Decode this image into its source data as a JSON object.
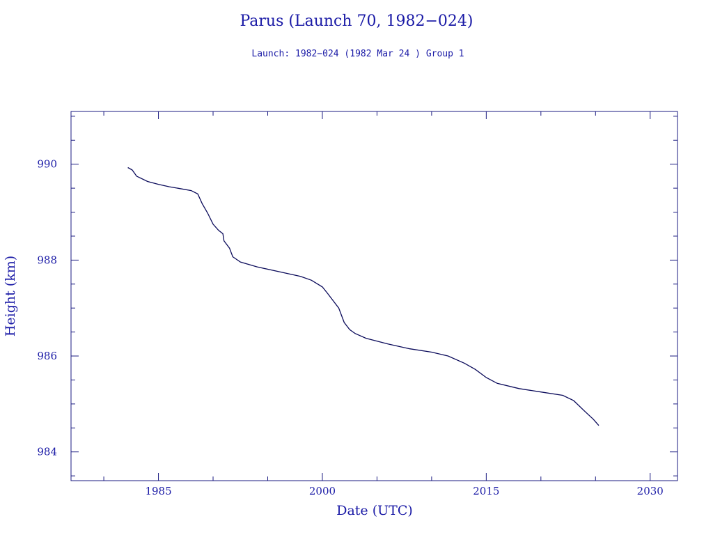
{
  "chart_data": {
    "type": "line",
    "title": "Parus (Launch 70, 1982−024)",
    "subtitle": "Launch: 1982−024  (1982 Mar 24 )  Group 1",
    "xlabel": "Date (UTC)",
    "ylabel": "Height (km)",
    "xlim": [
      1977,
      2032.5
    ],
    "ylim": [
      983.4,
      991.1
    ],
    "x_ticks": [
      1985,
      2000,
      2015,
      2030
    ],
    "x_tick_labels": [
      "1985",
      "2000",
      "2015",
      "2030"
    ],
    "y_ticks": [
      984,
      986,
      988,
      990
    ],
    "y_tick_labels": [
      "984",
      "986",
      "988",
      "990"
    ],
    "grid": false,
    "colors": {
      "text": "#1a1aa6",
      "line": "#0a0a5a",
      "frame": "#1a1a80"
    },
    "series": [
      {
        "values": [
          [
            1982.2,
            989.93
          ],
          [
            1982.6,
            989.88
          ],
          [
            1983.0,
            989.75
          ],
          [
            1984.0,
            989.64
          ],
          [
            1985.0,
            989.58
          ],
          [
            1986.0,
            989.53
          ],
          [
            1987.0,
            989.49
          ],
          [
            1988.0,
            989.45
          ],
          [
            1988.6,
            989.38
          ],
          [
            1989.0,
            989.18
          ],
          [
            1989.5,
            988.98
          ],
          [
            1990.0,
            988.75
          ],
          [
            1990.5,
            988.62
          ],
          [
            1990.9,
            988.55
          ],
          [
            1991.0,
            988.4
          ],
          [
            1991.5,
            988.25
          ],
          [
            1991.8,
            988.07
          ],
          [
            1992.5,
            987.96
          ],
          [
            1994.0,
            987.86
          ],
          [
            1996.0,
            987.76
          ],
          [
            1998.0,
            987.66
          ],
          [
            1999.0,
            987.58
          ],
          [
            2000.0,
            987.44
          ],
          [
            2000.5,
            987.3
          ],
          [
            2001.0,
            987.15
          ],
          [
            2001.5,
            987.0
          ],
          [
            2002.0,
            986.7
          ],
          [
            2002.5,
            986.55
          ],
          [
            2003.0,
            986.47
          ],
          [
            2004.0,
            986.37
          ],
          [
            2006.0,
            986.25
          ],
          [
            2008.0,
            986.15
          ],
          [
            2010.0,
            986.08
          ],
          [
            2011.5,
            986.0
          ],
          [
            2013.0,
            985.85
          ],
          [
            2014.0,
            985.72
          ],
          [
            2015.0,
            985.55
          ],
          [
            2016.0,
            985.43
          ],
          [
            2018.0,
            985.32
          ],
          [
            2020.0,
            985.25
          ],
          [
            2022.0,
            985.18
          ],
          [
            2023.0,
            985.07
          ],
          [
            2024.0,
            984.85
          ],
          [
            2024.8,
            984.68
          ],
          [
            2025.3,
            984.55
          ]
        ]
      }
    ]
  }
}
